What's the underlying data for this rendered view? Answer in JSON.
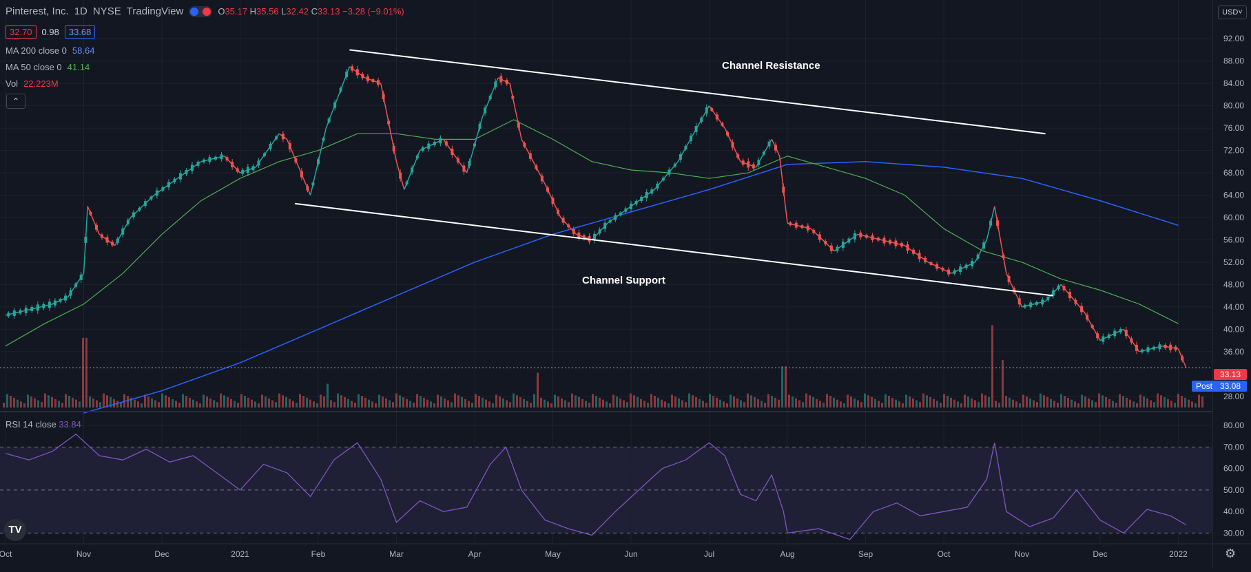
{
  "header": {
    "title": "Pinterest, Inc.",
    "interval": "1D",
    "exchange": "NYSE",
    "source": "TradingView",
    "ohlc": {
      "o_label": "O",
      "o_value": "35.17",
      "h_label": "H",
      "h_value": "35.56",
      "l_label": "L",
      "l_value": "32.42",
      "c_label": "C",
      "c_value": "33.13",
      "change": "−3.28 (−9.01%)"
    },
    "bid": "32.70",
    "spread": "0.98",
    "ask": "33.68",
    "ma200_label": "MA 200 close 0",
    "ma200_value": "58.64",
    "ma50_label": "MA 50 close 0",
    "ma50_value": "41.14",
    "vol_label": "Vol",
    "vol_value": "22.223M",
    "currency": "USD"
  },
  "rsi_legend": {
    "label": "RSI 14 close",
    "value": "33.84"
  },
  "price_axis": [
    "92.00",
    "88.00",
    "84.00",
    "80.00",
    "76.00",
    "72.00",
    "68.00",
    "64.00",
    "60.00",
    "56.00",
    "52.00",
    "48.00",
    "44.00",
    "40.00",
    "36.00",
    "28.00"
  ],
  "rsi_axis": [
    "80.00",
    "70.00",
    "60.00",
    "50.00",
    "40.00",
    "30.00"
  ],
  "price_tags": {
    "last": "33.13",
    "post_label": "Post",
    "post": "33.08"
  },
  "time_axis": [
    {
      "label": "Oct",
      "month": 0
    },
    {
      "label": "Nov",
      "month": 1
    },
    {
      "label": "Dec",
      "month": 2
    },
    {
      "label": "2021",
      "month": 3
    },
    {
      "label": "Feb",
      "month": 4
    },
    {
      "label": "Mar",
      "month": 5
    },
    {
      "label": "Apr",
      "month": 6
    },
    {
      "label": "May",
      "month": 7
    },
    {
      "label": "Jun",
      "month": 8
    },
    {
      "label": "Jul",
      "month": 9
    },
    {
      "label": "Aug",
      "month": 10
    },
    {
      "label": "Sep",
      "month": 11
    },
    {
      "label": "Oct",
      "month": 12
    },
    {
      "label": "Nov",
      "month": 13
    },
    {
      "label": "Dec",
      "month": 14
    },
    {
      "label": "2022",
      "month": 15
    }
  ],
  "annotations": {
    "resistance": "Channel Resistance",
    "support": "Channel Support"
  },
  "chart_data": {
    "type": "line",
    "title": "Pinterest, Inc. · 1D · NYSE",
    "ylim": [
      26,
      94
    ],
    "rsi_ylim": [
      25,
      82
    ],
    "x_unit": "months since Oct 2020",
    "colors": {
      "up": "#26a69a",
      "down": "#ef5350",
      "ma50": "#4caf50",
      "ma200": "#2962ff",
      "rsi": "#7e57c2",
      "trend": "#ffffff"
    },
    "price_path": [
      [
        0.0,
        42.5
      ],
      [
        0.3,
        43.5
      ],
      [
        0.6,
        44.5
      ],
      [
        0.8,
        45.8
      ],
      [
        1.0,
        50
      ],
      [
        1.05,
        62
      ],
      [
        1.2,
        57
      ],
      [
        1.4,
        55
      ],
      [
        1.6,
        60
      ],
      [
        1.9,
        64
      ],
      [
        2.2,
        67
      ],
      [
        2.5,
        70
      ],
      [
        2.8,
        71
      ],
      [
        3.0,
        68
      ],
      [
        3.2,
        69
      ],
      [
        3.5,
        75
      ],
      [
        3.6,
        74
      ],
      [
        3.9,
        64
      ],
      [
        4.1,
        76
      ],
      [
        4.4,
        87
      ],
      [
        4.6,
        85
      ],
      [
        4.8,
        84
      ],
      [
        5.0,
        70
      ],
      [
        5.1,
        65
      ],
      [
        5.3,
        72
      ],
      [
        5.6,
        74
      ],
      [
        5.9,
        68
      ],
      [
        6.1,
        78
      ],
      [
        6.3,
        85
      ],
      [
        6.45,
        84
      ],
      [
        6.6,
        74
      ],
      [
        6.9,
        66
      ],
      [
        7.1,
        60
      ],
      [
        7.3,
        57
      ],
      [
        7.5,
        56
      ],
      [
        7.7,
        59
      ],
      [
        7.9,
        61
      ],
      [
        8.1,
        63
      ],
      [
        8.3,
        65
      ],
      [
        8.6,
        70
      ],
      [
        8.8,
        75
      ],
      [
        9.0,
        80
      ],
      [
        9.2,
        76
      ],
      [
        9.4,
        70
      ],
      [
        9.6,
        69
      ],
      [
        9.8,
        74
      ],
      [
        9.9,
        71
      ],
      [
        10.0,
        59
      ],
      [
        10.3,
        58
      ],
      [
        10.6,
        54
      ],
      [
        10.9,
        57
      ],
      [
        11.2,
        56
      ],
      [
        11.5,
        55
      ],
      [
        11.8,
        52
      ],
      [
        12.1,
        50
      ],
      [
        12.4,
        52
      ],
      [
        12.55,
        56
      ],
      [
        12.65,
        62
      ],
      [
        12.8,
        50
      ],
      [
        13.0,
        44
      ],
      [
        13.3,
        45
      ],
      [
        13.5,
        48
      ],
      [
        13.8,
        43
      ],
      [
        14.0,
        38
      ],
      [
        14.3,
        40
      ],
      [
        14.5,
        36
      ],
      [
        14.8,
        37
      ],
      [
        15.0,
        36.5
      ],
      [
        15.1,
        33.1
      ]
    ],
    "ma50_path": [
      [
        0.0,
        37
      ],
      [
        0.5,
        41
      ],
      [
        1.0,
        44.5
      ],
      [
        1.5,
        50
      ],
      [
        2.0,
        57
      ],
      [
        2.5,
        63
      ],
      [
        3.0,
        67
      ],
      [
        3.5,
        70
      ],
      [
        4.0,
        72
      ],
      [
        4.5,
        75
      ],
      [
        5.0,
        75
      ],
      [
        5.5,
        74
      ],
      [
        6.0,
        74
      ],
      [
        6.5,
        77.5
      ],
      [
        7.0,
        74
      ],
      [
        7.5,
        70
      ],
      [
        8.0,
        68.5
      ],
      [
        8.5,
        68
      ],
      [
        9.0,
        67
      ],
      [
        9.5,
        68
      ],
      [
        10.0,
        71
      ],
      [
        10.5,
        69
      ],
      [
        11.0,
        67
      ],
      [
        11.5,
        64
      ],
      [
        12.0,
        58
      ],
      [
        12.5,
        54
      ],
      [
        13.0,
        52
      ],
      [
        13.5,
        49
      ],
      [
        14.0,
        47
      ],
      [
        14.5,
        44.5
      ],
      [
        15.0,
        41
      ]
    ],
    "ma200_path": [
      [
        1.0,
        25
      ],
      [
        2.0,
        29
      ],
      [
        3.0,
        34
      ],
      [
        4.0,
        40
      ],
      [
        5.0,
        46
      ],
      [
        6.0,
        52
      ],
      [
        7.0,
        57
      ],
      [
        8.0,
        61
      ],
      [
        9.0,
        65
      ],
      [
        10.0,
        69.5
      ],
      [
        11.0,
        70
      ],
      [
        12.0,
        69
      ],
      [
        13.0,
        67
      ],
      [
        14.0,
        63
      ],
      [
        15.0,
        58.6
      ]
    ],
    "resistance_line": [
      [
        4.4,
        90
      ],
      [
        13.3,
        75
      ]
    ],
    "support_line": [
      [
        3.7,
        62.5
      ],
      [
        13.4,
        46
      ]
    ],
    "volume_spikes": [
      {
        "x": 1.0,
        "v": 44
      },
      {
        "x": 4.1,
        "v": 15
      },
      {
        "x": 6.8,
        "v": 22
      },
      {
        "x": 9.95,
        "v": 26
      },
      {
        "x": 12.6,
        "v": 52
      },
      {
        "x": 12.75,
        "v": 30
      }
    ],
    "rsi_path": [
      [
        0.0,
        67
      ],
      [
        0.3,
        64
      ],
      [
        0.6,
        68
      ],
      [
        0.9,
        76
      ],
      [
        1.2,
        66
      ],
      [
        1.5,
        64
      ],
      [
        1.8,
        69
      ],
      [
        2.1,
        63
      ],
      [
        2.4,
        66
      ],
      [
        2.7,
        58
      ],
      [
        3.0,
        50
      ],
      [
        3.3,
        62
      ],
      [
        3.6,
        58
      ],
      [
        3.9,
        47
      ],
      [
        4.2,
        64
      ],
      [
        4.5,
        72
      ],
      [
        4.8,
        55
      ],
      [
        5.0,
        35
      ],
      [
        5.3,
        45
      ],
      [
        5.6,
        40
      ],
      [
        5.9,
        42
      ],
      [
        6.2,
        62
      ],
      [
        6.4,
        70
      ],
      [
        6.6,
        50
      ],
      [
        6.9,
        36
      ],
      [
        7.2,
        32
      ],
      [
        7.5,
        29
      ],
      [
        7.8,
        40
      ],
      [
        8.1,
        50
      ],
      [
        8.4,
        60
      ],
      [
        8.7,
        64
      ],
      [
        9.0,
        72
      ],
      [
        9.2,
        66
      ],
      [
        9.4,
        48
      ],
      [
        9.6,
        45
      ],
      [
        9.8,
        57
      ],
      [
        9.95,
        40
      ],
      [
        10.0,
        30
      ],
      [
        10.4,
        32
      ],
      [
        10.8,
        27
      ],
      [
        11.1,
        40
      ],
      [
        11.4,
        44
      ],
      [
        11.7,
        38
      ],
      [
        12.0,
        40
      ],
      [
        12.3,
        42
      ],
      [
        12.55,
        55
      ],
      [
        12.65,
        72
      ],
      [
        12.8,
        40
      ],
      [
        13.1,
        33
      ],
      [
        13.4,
        37
      ],
      [
        13.7,
        50
      ],
      [
        14.0,
        36
      ],
      [
        14.3,
        30
      ],
      [
        14.6,
        41
      ],
      [
        14.9,
        38
      ],
      [
        15.1,
        33.8
      ]
    ]
  }
}
